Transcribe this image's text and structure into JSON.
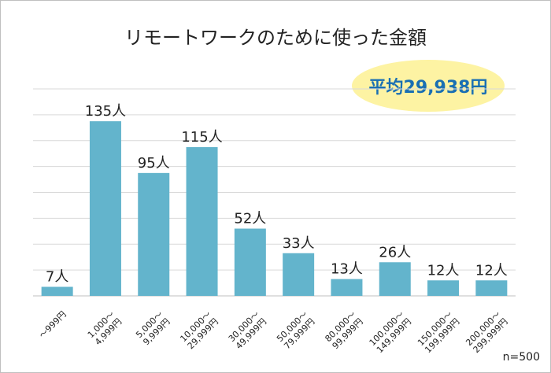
{
  "chart_data": {
    "type": "bar",
    "title": "リモートワークのために使った金額",
    "categories": [
      "～999円",
      "1,000～\n4,999円",
      "5,000～\n9,999円",
      "10,000～\n29,999円",
      "30,000～\n49,999円",
      "50,000～\n79,999円",
      "80,000～\n99,999円",
      "100,000～\n149,999円",
      "150,000～\n199,999円",
      "200,000～\n299,999円"
    ],
    "values": [
      7,
      135,
      95,
      115,
      52,
      33,
      13,
      26,
      12,
      12
    ],
    "value_labels": [
      "7人",
      "135人",
      "95人",
      "115人",
      "52人",
      "33人",
      "13人",
      "26人",
      "12人",
      "12人"
    ],
    "ylim": [
      0,
      160
    ],
    "grid": true,
    "bar_color": "#63b4cc",
    "average_label": "平均29,938円",
    "sample_note": "n=500"
  }
}
